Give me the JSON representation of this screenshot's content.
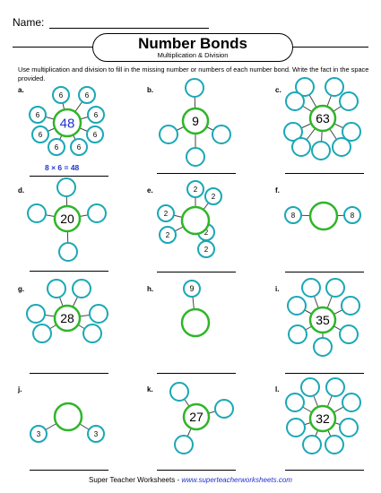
{
  "header": {
    "name_label": "Name:",
    "title": "Number Bonds",
    "subtitle": "Multiplication & Division",
    "instructions": "Use multiplication and division to fill in the missing number or numbers of each number bond. Write the fact in the space provided."
  },
  "colors": {
    "center_ring": "#2fb52a",
    "part_ring": "#1aa8b5",
    "connector": "#444444",
    "fact_text": "#1f35c8",
    "link": "#2233cc"
  },
  "problems": [
    {
      "label": "a.",
      "center": "48",
      "center_color": "#1f35c8",
      "parts": [
        "6",
        "6",
        "6",
        "6",
        "6",
        "6",
        "6",
        "6"
      ],
      "fact": "8 × 6 = 48"
    },
    {
      "label": "b.",
      "center": "9",
      "parts": [
        "",
        "",
        "",
        ""
      ]
    },
    {
      "label": "c.",
      "center": "63",
      "parts": [
        "",
        "",
        "",
        "",
        "",
        "",
        "",
        "",
        ""
      ]
    },
    {
      "label": "d.",
      "center": "20",
      "parts": [
        "",
        "",
        "",
        ""
      ]
    },
    {
      "label": "e.",
      "center": "",
      "parts": [
        "2",
        "2",
        "2",
        "2",
        "2",
        "2"
      ]
    },
    {
      "label": "f.",
      "center": "",
      "parts": [
        "8",
        "8"
      ]
    },
    {
      "label": "g.",
      "center": "28",
      "parts": [
        "",
        "",
        "",
        "",
        "",
        ""
      ]
    },
    {
      "label": "h.",
      "center": "",
      "parts": [
        "9"
      ]
    },
    {
      "label": "i.",
      "center": "35",
      "parts": [
        "",
        "",
        "",
        "",
        "",
        "",
        ""
      ]
    },
    {
      "label": "j.",
      "center": "",
      "parts": [
        "3",
        "3"
      ]
    },
    {
      "label": "k.",
      "center": "27",
      "parts": [
        "",
        "",
        ""
      ]
    },
    {
      "label": "l.",
      "center": "32",
      "parts": [
        "",
        "",
        "",
        "",
        "",
        "",
        "",
        ""
      ]
    }
  ],
  "footer": {
    "brand": "Super Teacher Worksheets",
    "separator": " - ",
    "url": "www.superteacherworksheets.com"
  }
}
